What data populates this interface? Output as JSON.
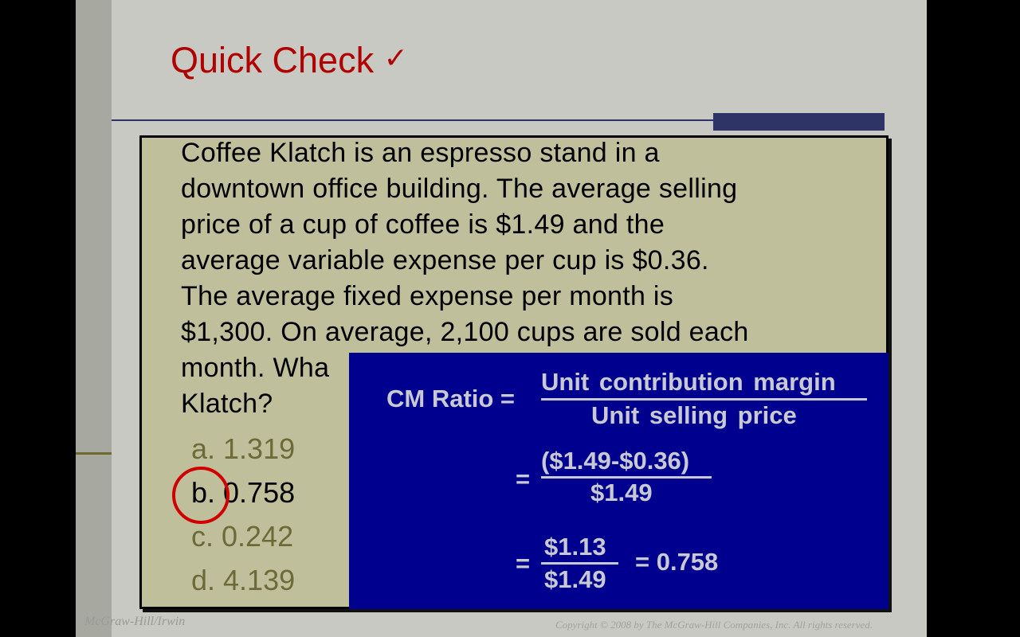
{
  "slide": {
    "title": "Quick Check",
    "title_icon": "checkmark-icon",
    "title_check": "✓",
    "question_lines": [
      "Coffee Klatch is an espresso stand in a",
      "downtown office building. The average selling",
      "price of a cup of coffee is $1.49 and the",
      "average variable expense per cup is $0.36.",
      "The average fixed expense per month is",
      "$1,300. On average, 2,100 cups are sold each",
      "month. Wha",
      "Klatch?"
    ],
    "answers": [
      {
        "label": "a. 1.319",
        "selected": false
      },
      {
        "label": "b. 0.758",
        "selected": true
      },
      {
        "label": "c. 0.242",
        "selected": false
      },
      {
        "label": "d. 4.139",
        "selected": false
      }
    ],
    "solution": {
      "lhs": "CM Ratio =",
      "f1_num": "Unit contribution  margin",
      "f1_den": "Unit selling  price",
      "eq2": "=",
      "f2_num": "($1.49-$0.36)",
      "f2_den": "$1.49",
      "eq3": "=",
      "f3_num": "$1.13",
      "f3_den": "$1.49",
      "result": "= 0.758"
    },
    "footer_left": "McGraw-Hill/Irwin",
    "footer_right": "Copyright © 2008 by The McGraw-Hill Companies, Inc. All rights reserved.",
    "colors": {
      "title": "#b00000",
      "answer_box": "#c0bf9c",
      "solution_box": "#00008e",
      "circle": "#d00000"
    }
  }
}
